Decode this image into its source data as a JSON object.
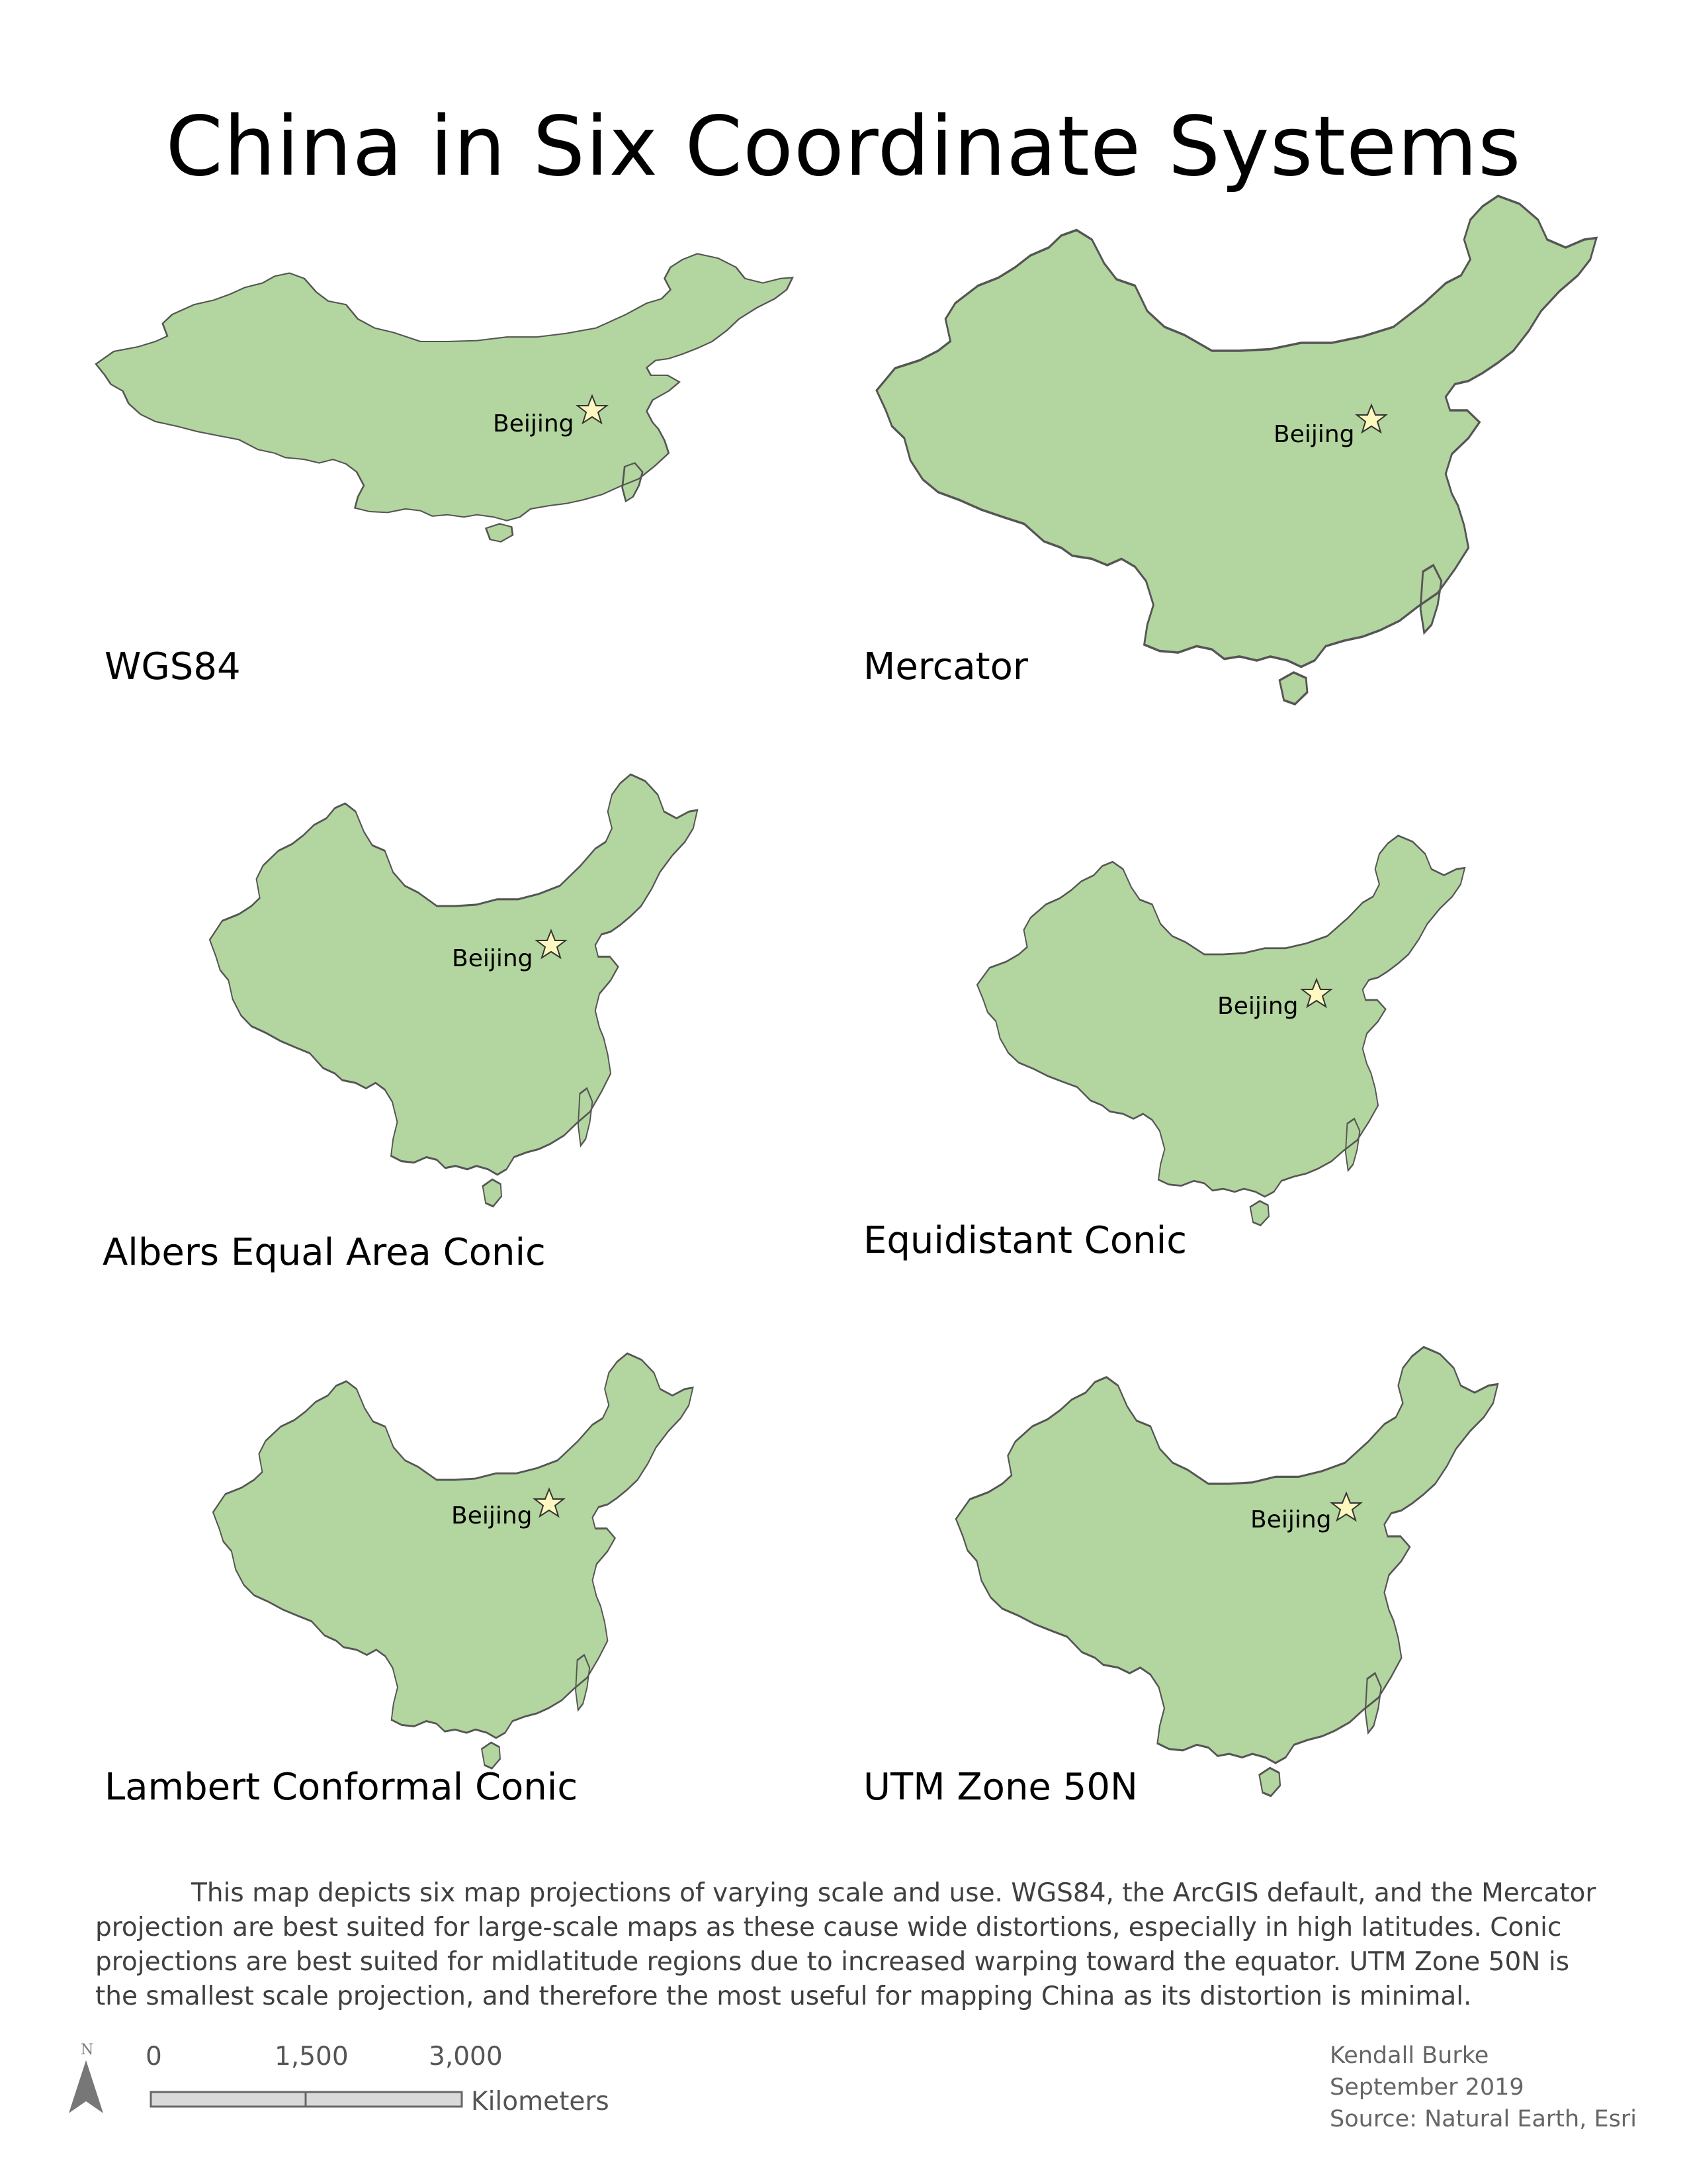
{
  "title": "China in Six Coordinate Systems",
  "colors": {
    "land": "#b3d59f",
    "outline": "#555555",
    "star": "#fff7c0"
  },
  "maps": [
    {
      "name": "WGS84",
      "city": "Beijing"
    },
    {
      "name": "Mercator",
      "city": "Beijing"
    },
    {
      "name": "Albers Equal Area Conic",
      "city": "Beijing"
    },
    {
      "name": "Equidistant Conic",
      "city": "Beijing"
    },
    {
      "name": "Lambert Conformal Conic",
      "city": "Beijing"
    },
    {
      "name": "UTM Zone 50N",
      "city": "Beijing"
    }
  ],
  "description": "This map depicts six map projections of varying scale and use. WGS84, the ArcGIS default, and the Mercator projection are best suited for large-scale maps as these cause wide distortions, especially in high latitudes. Conic projections are best suited for midlatitude regions due to increased warping toward the equator. UTM Zone 50N is the smallest scale projection, and therefore the most useful for mapping China as its distortion is minimal.",
  "north_arrow": {
    "label": "N",
    "icon": "north-arrow-icon"
  },
  "scale_bar": {
    "ticks": [
      "0",
      "1,500",
      "3,000"
    ],
    "unit": "Kilometers"
  },
  "credits": {
    "author": "Kendall Burke",
    "date": "September 2019",
    "source": "Source: Natural Earth, Esri"
  }
}
